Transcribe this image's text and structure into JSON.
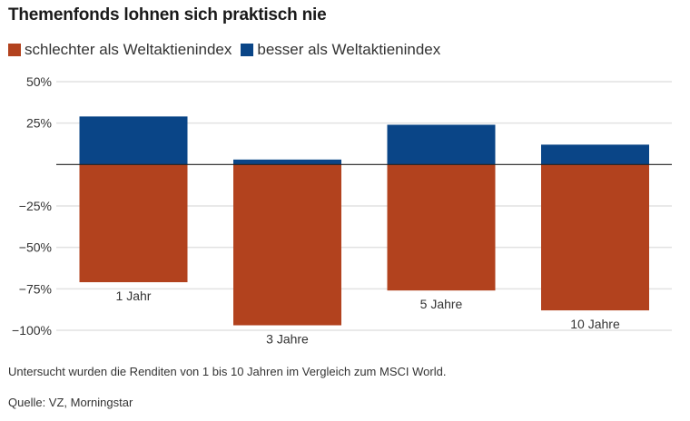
{
  "chart_data": {
    "type": "bar",
    "title": "Themenfonds lohnen sich praktisch nie",
    "categories": [
      "1 Jahr",
      "3 Jahre",
      "5 Jahre",
      "10 Jahre"
    ],
    "series": [
      {
        "name": "schlechter als Weltaktienindex",
        "color": "#b2421e",
        "values": [
          -71,
          -97,
          -76,
          -88
        ]
      },
      {
        "name": "besser als Weltaktienindex",
        "color": "#0a4587",
        "values": [
          29,
          3,
          24,
          12
        ]
      }
    ],
    "xlabel": "",
    "ylabel": "",
    "ylim": [
      -100,
      50
    ],
    "yticks": [
      50,
      25,
      0,
      -25,
      -50,
      -75,
      -100
    ],
    "ytick_labels": [
      "50%",
      "25%",
      "",
      "−25%",
      "−50%",
      "−75%",
      "−100%"
    ],
    "grid": true,
    "legend": "top-left",
    "stacked": true
  },
  "legend": [
    {
      "label": "schlechter als Weltaktienindex",
      "color": "#b2421e"
    },
    {
      "label": "besser als Weltaktienindex",
      "color": "#0a4587"
    }
  ],
  "note": "Untersucht wurden die Renditen von 1 bis 10 Jahren im Vergleich zum MSCI World.",
  "source": "Quelle: VZ, Morningstar"
}
